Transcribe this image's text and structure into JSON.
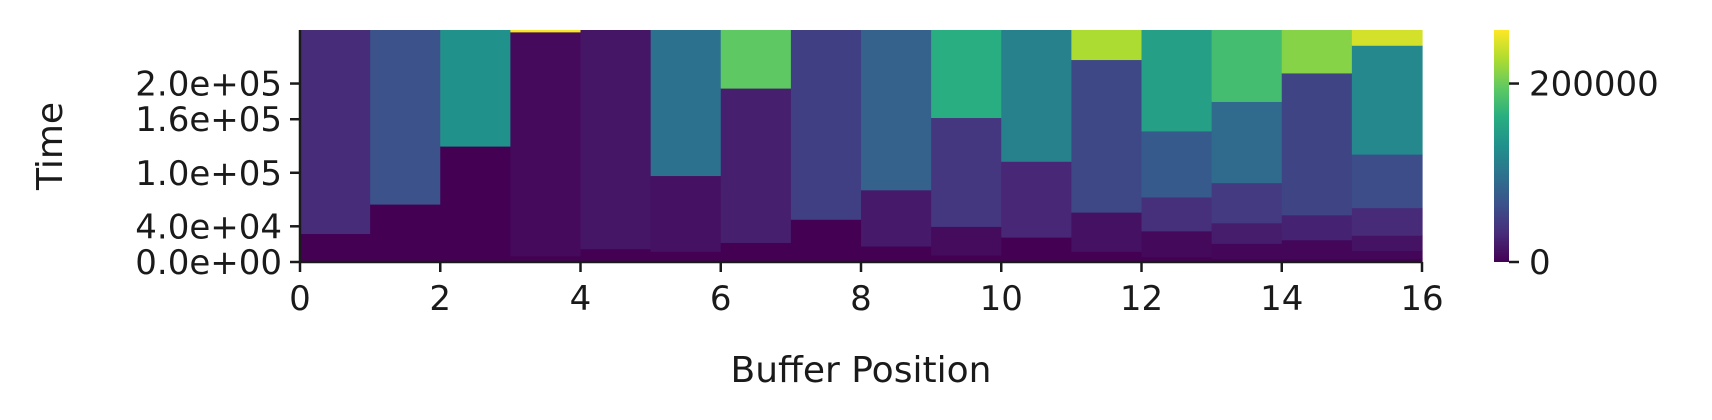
{
  "chart_data": {
    "type": "heatmap",
    "title": "",
    "xlabel": "Buffer Position",
    "ylabel": "Time",
    "xlim": [
      0,
      16
    ],
    "ylim": [
      0,
      260000
    ],
    "x_ticks": [
      0,
      2,
      4,
      6,
      8,
      10,
      12,
      14,
      16
    ],
    "x_tick_labels": [
      "0",
      "2",
      "4",
      "6",
      "8",
      "10",
      "12",
      "14",
      "16"
    ],
    "y_ticks": [
      0,
      40000,
      100000,
      160000,
      200000
    ],
    "y_tick_labels": [
      "0.0e+00",
      "4.0e+04",
      "1.0e+05",
      "1.6e+05",
      "2.0e+05"
    ],
    "colorbar": {
      "colormap": "viridis",
      "range": [
        0,
        260000
      ],
      "ticks": [
        0,
        200000
      ],
      "tick_labels": [
        "0",
        "200000"
      ]
    },
    "columns": [
      {
        "position": 0,
        "bands": [
          [
            0,
            32000,
            0
          ],
          [
            32000,
            260000,
            32000
          ]
        ]
      },
      {
        "position": 1,
        "bands": [
          [
            0,
            65000,
            0
          ],
          [
            65000,
            260000,
            65000
          ]
        ]
      },
      {
        "position": 2,
        "bands": [
          [
            0,
            130000,
            0
          ],
          [
            130000,
            260000,
            130000
          ]
        ]
      },
      {
        "position": 3,
        "bands": [
          [
            0,
            7000,
            0
          ],
          [
            7000,
            258000,
            7000
          ],
          [
            258000,
            260000,
            258000
          ]
        ]
      },
      {
        "position": 4,
        "bands": [
          [
            0,
            15000,
            0
          ],
          [
            15000,
            260000,
            15000
          ]
        ]
      },
      {
        "position": 5,
        "bands": [
          [
            0,
            12000,
            0
          ],
          [
            12000,
            97000,
            12000
          ],
          [
            97000,
            260000,
            97000
          ]
        ]
      },
      {
        "position": 6,
        "bands": [
          [
            0,
            22000,
            0
          ],
          [
            22000,
            195000,
            22000
          ],
          [
            195000,
            260000,
            195000
          ]
        ]
      },
      {
        "position": 7,
        "bands": [
          [
            0,
            48000,
            0
          ],
          [
            48000,
            260000,
            48000
          ]
        ]
      },
      {
        "position": 8,
        "bands": [
          [
            0,
            18000,
            0
          ],
          [
            18000,
            81000,
            18000
          ],
          [
            81000,
            260000,
            81000
          ]
        ]
      },
      {
        "position": 9,
        "bands": [
          [
            0,
            8000,
            0
          ],
          [
            8000,
            40000,
            8000
          ],
          [
            40000,
            162000,
            40000
          ],
          [
            162000,
            260000,
            162000
          ]
        ]
      },
      {
        "position": 10,
        "bands": [
          [
            0,
            28000,
            0
          ],
          [
            28000,
            113000,
            28000
          ],
          [
            113000,
            260000,
            113000
          ]
        ]
      },
      {
        "position": 11,
        "bands": [
          [
            0,
            12000,
            0
          ],
          [
            12000,
            56000,
            12000
          ],
          [
            56000,
            227000,
            56000
          ],
          [
            227000,
            260000,
            227000
          ]
        ]
      },
      {
        "position": 12,
        "bands": [
          [
            0,
            6000,
            0
          ],
          [
            6000,
            35000,
            6000
          ],
          [
            35000,
            73000,
            35000
          ],
          [
            73000,
            147000,
            73000
          ],
          [
            147000,
            260000,
            147000
          ]
        ]
      },
      {
        "position": 13,
        "bands": [
          [
            0,
            4000,
            0
          ],
          [
            4000,
            21000,
            4000
          ],
          [
            21000,
            44000,
            21000
          ],
          [
            44000,
            89000,
            44000
          ],
          [
            89000,
            180000,
            89000
          ],
          [
            180000,
            260000,
            180000
          ]
        ]
      },
      {
        "position": 14,
        "bands": [
          [
            0,
            4000,
            0
          ],
          [
            4000,
            25000,
            4000
          ],
          [
            25000,
            53000,
            25000
          ],
          [
            53000,
            106000,
            53000
          ],
          [
            106000,
            212000,
            53000
          ],
          [
            212000,
            260000,
            212000
          ]
        ]
      },
      {
        "position": 15,
        "bands": [
          [
            0,
            4000,
            0
          ],
          [
            4000,
            13000,
            4000
          ],
          [
            13000,
            30000,
            13000
          ],
          [
            30000,
            61000,
            30000
          ],
          [
            61000,
            121000,
            61000
          ],
          [
            121000,
            243000,
            121000
          ],
          [
            243000,
            260000,
            243000
          ]
        ]
      }
    ]
  }
}
